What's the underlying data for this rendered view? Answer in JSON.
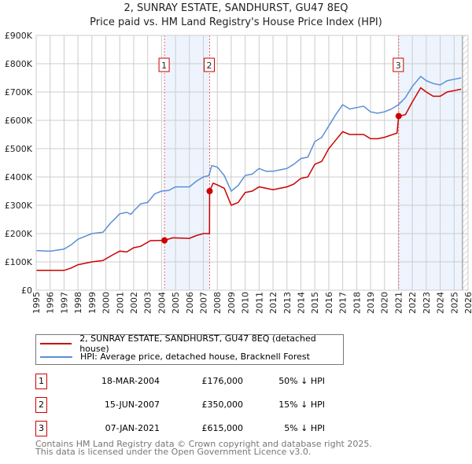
{
  "title": "2, SUNRAY ESTATE, SANDHURST, GU47 8EQ",
  "subtitle": "Price paid vs. HM Land Registry's House Price Index (HPI)",
  "chart_data": {
    "type": "line",
    "xlim": [
      1995,
      2026
    ],
    "ylim": [
      0,
      900000
    ],
    "yticks": [
      {
        "v": 0,
        "label": "£0"
      },
      {
        "v": 100000,
        "label": "£100K"
      },
      {
        "v": 200000,
        "label": "£200K"
      },
      {
        "v": 300000,
        "label": "£300K"
      },
      {
        "v": 400000,
        "label": "£400K"
      },
      {
        "v": 500000,
        "label": "£500K"
      },
      {
        "v": 600000,
        "label": "£600K"
      },
      {
        "v": 700000,
        "label": "£700K"
      },
      {
        "v": 800000,
        "label": "£800K"
      },
      {
        "v": 900000,
        "label": "£900K"
      }
    ],
    "xticks": [
      "1995",
      "1996",
      "1997",
      "1998",
      "1999",
      "2000",
      "2001",
      "2002",
      "2003",
      "2004",
      "2005",
      "2006",
      "2007",
      "2008",
      "2009",
      "2010",
      "2011",
      "2012",
      "2013",
      "2014",
      "2015",
      "2016",
      "2017",
      "2018",
      "2019",
      "2020",
      "2021",
      "2022",
      "2023",
      "2024",
      "2025",
      "2026"
    ],
    "shaded": [
      [
        2004.21,
        2007.45
      ],
      [
        2021.02,
        2025.6
      ]
    ],
    "hatch_from": 2025.6,
    "series": [
      {
        "name": "2, SUNRAY ESTATE, SANDHURST, GU47 8EQ (detached house)",
        "color": "#cc0000",
        "x": [
          1995,
          1997,
          1997.5,
          1998,
          1999,
          1999.8,
          2000.5,
          2001,
          2001.5,
          2002,
          2002.5,
          2003.2,
          2004.21,
          2004.8,
          2006,
          2006.5,
          2007,
          2007.44,
          2007.45,
          2007.7,
          2008,
          2008.5,
          2009,
          2009.5,
          2010,
          2010.5,
          2011,
          2011.5,
          2012,
          2012.5,
          2013,
          2013.5,
          2014,
          2014.5,
          2015,
          2015.5,
          2016,
          2016.5,
          2017,
          2017.5,
          2018,
          2018.5,
          2019,
          2019.5,
          2020,
          2020.9,
          2021.02,
          2021.5,
          2022,
          2022.6,
          2023,
          2023.5,
          2024,
          2024.5,
          2025,
          2025.5
        ],
        "y": [
          70000,
          70000,
          78000,
          90000,
          100000,
          105000,
          125000,
          138000,
          135000,
          150000,
          155000,
          175000,
          176000,
          185000,
          183000,
          193000,
          200000,
          200000,
          350000,
          378000,
          372000,
          360000,
          300000,
          310000,
          345000,
          350000,
          365000,
          360000,
          355000,
          360000,
          365000,
          375000,
          395000,
          400000,
          445000,
          455000,
          500000,
          530000,
          560000,
          550000,
          550000,
          550000,
          535000,
          535000,
          540000,
          555000,
          615000,
          620000,
          665000,
          715000,
          700000,
          685000,
          685000,
          700000,
          705000,
          710000
        ]
      },
      {
        "name": "HPI: Average price, detached house, Bracknell Forest",
        "color": "#5b8fd6",
        "x": [
          1995,
          1996,
          1997,
          1997.5,
          1998,
          1998.5,
          1999,
          1999.8,
          2000.3,
          2001,
          2001.5,
          2001.8,
          2002,
          2002.5,
          2003,
          2003.5,
          2004,
          2004.5,
          2005,
          2006,
          2006.5,
          2007,
          2007.4,
          2007.6,
          2008,
          2008.5,
          2009,
          2009.5,
          2010,
          2010.5,
          2011,
          2011.5,
          2012,
          2012.5,
          2013,
          2013.5,
          2014,
          2014.5,
          2015,
          2015.5,
          2016,
          2016.5,
          2017,
          2017.5,
          2018,
          2018.5,
          2019,
          2019.5,
          2020,
          2020.5,
          2021,
          2021.5,
          2022,
          2022.6,
          2023,
          2023.5,
          2024,
          2024.5,
          2025,
          2025.5
        ],
        "y": [
          140000,
          138000,
          145000,
          160000,
          180000,
          190000,
          200000,
          205000,
          235000,
          270000,
          275000,
          268000,
          280000,
          305000,
          310000,
          340000,
          350000,
          352000,
          365000,
          365000,
          385000,
          400000,
          405000,
          440000,
          435000,
          405000,
          350000,
          370000,
          405000,
          410000,
          430000,
          420000,
          420000,
          425000,
          430000,
          445000,
          465000,
          470000,
          525000,
          540000,
          580000,
          620000,
          655000,
          640000,
          645000,
          650000,
          630000,
          625000,
          630000,
          640000,
          655000,
          680000,
          720000,
          755000,
          740000,
          730000,
          725000,
          740000,
          745000,
          750000
        ]
      }
    ],
    "sales": [
      {
        "id": "1",
        "x": 2004.21,
        "y": 176000,
        "date": "18-MAR-2004",
        "price": "£176,000",
        "hpi": "50% ↓ HPI"
      },
      {
        "id": "2",
        "x": 2007.45,
        "y": 350000,
        "date": "15-JUN-2007",
        "price": "£350,000",
        "hpi": "15% ↓ HPI"
      },
      {
        "id": "3",
        "x": 2021.02,
        "y": 615000,
        "date": "07-JAN-2021",
        "price": "£615,000",
        "hpi": "5% ↓ HPI"
      }
    ]
  },
  "footer": [
    "Contains HM Land Registry data © Crown copyright and database right 2025.",
    "This data is licensed under the Open Government Licence v3.0."
  ]
}
